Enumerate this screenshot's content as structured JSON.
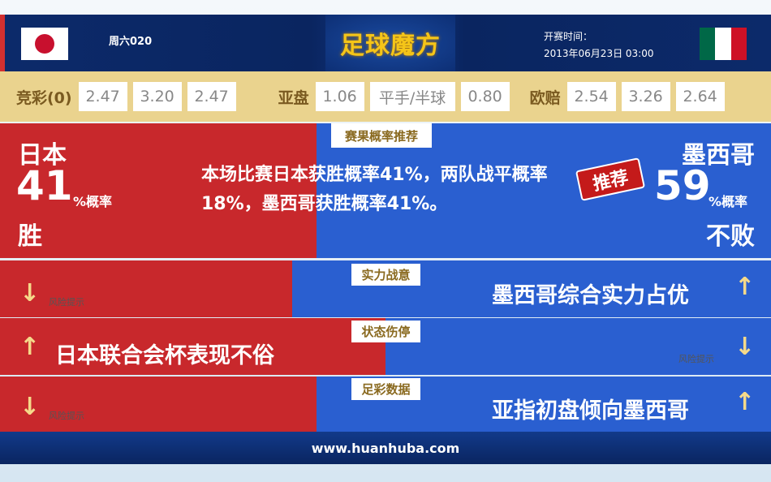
{
  "header": {
    "match_no": "周六020",
    "logo": "足球魔方",
    "time_label": "开赛时间：",
    "time_value": "2013年06月23日 03:00",
    "home_flag": "japan-flag",
    "away_flag": "mexico-flag"
  },
  "odds": {
    "jc_label": "竞彩(0)",
    "jc": [
      "2.47",
      "3.20",
      "2.47"
    ],
    "yp_label": "亚盘",
    "yp": [
      "1.06",
      "平手/半球",
      "0.80"
    ],
    "op_label": "欧赔",
    "op": [
      "2.54",
      "3.26",
      "2.64"
    ]
  },
  "prediction": {
    "tab": "赛果概率推荐",
    "home_team": "日本",
    "home_pct": "41",
    "pct_unit": "%概率",
    "home_result": "胜",
    "summary": "本场比赛日本获胜概率41%，两队战平概率18%，墨西哥获胜概率41%。",
    "stamp": "推荐",
    "away_team": "墨西哥",
    "away_pct": "59",
    "away_result": "不败"
  },
  "rows": [
    {
      "tab": "实力战意",
      "left": "风险提示",
      "right": "墨西哥综合实力占优"
    },
    {
      "tab": "状态伤停",
      "left": "日本联合会杯表现不俗",
      "right": "风险提示"
    },
    {
      "tab": "足彩数据",
      "left": "风险提示",
      "right": "亚指初盘倾向墨西哥"
    }
  ],
  "footer": {
    "url": "www.huanhuba.com"
  },
  "colors": {
    "home": "#c8282c",
    "away": "#2a5fd0",
    "odds_bar": "#ead38e"
  }
}
